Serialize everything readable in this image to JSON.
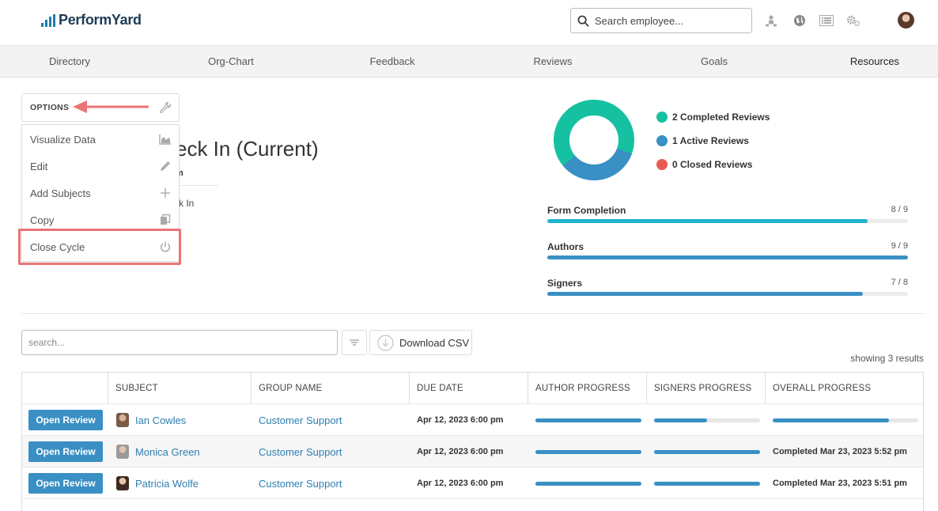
{
  "header": {
    "logo_text": "PerformYard",
    "search_placeholder": "Search employee...",
    "icons": [
      "org-person-icon",
      "globe-icon",
      "list-icon",
      "gears-icon"
    ]
  },
  "nav": {
    "items": [
      {
        "label": "Directory"
      },
      {
        "label": "Org-Chart"
      },
      {
        "label": "Feedback"
      },
      {
        "label": "Reviews"
      },
      {
        "label": "Goals"
      },
      {
        "label": "Resources",
        "active": true
      }
    ]
  },
  "options": {
    "label": "OPTIONS",
    "items": [
      {
        "label": "Visualize Data",
        "icon": "chart-icon"
      },
      {
        "label": "Edit",
        "icon": "pencil-icon"
      },
      {
        "label": "Add Subjects",
        "icon": "plus-icon"
      },
      {
        "label": "Copy",
        "icon": "copy-icon"
      },
      {
        "label": "Close Cycle",
        "icon": "power-icon"
      }
    ]
  },
  "cycle": {
    "title_visible": "eck In (Current)",
    "subtitle_visible": "m",
    "line2_visible": "k In"
  },
  "summary": {
    "legend": [
      {
        "label": "2 Completed Reviews",
        "color": "#15c1a0"
      },
      {
        "label": "1 Active Reviews",
        "color": "#3a8fc4"
      },
      {
        "label": "0 Closed Reviews",
        "color": "#e85a4f"
      }
    ],
    "donut": {
      "completed": 2,
      "active": 1,
      "closed": 0
    },
    "stats": [
      {
        "label": "Form Completion",
        "value": "8 / 9",
        "fraction": 0.889,
        "color": "#1fb3cf"
      },
      {
        "label": "Authors",
        "value": "9 / 9",
        "fraction": 1.0,
        "color": "#3a8fc4"
      },
      {
        "label": "Signers",
        "value": "7 / 8",
        "fraction": 0.875,
        "color": "#3a8fc4"
      }
    ]
  },
  "toolbar": {
    "search_placeholder": "search...",
    "download_label": "Download CSV",
    "results_text": "showing 3 results"
  },
  "table": {
    "headers": [
      "SUBJECT",
      "GROUP NAME",
      "DUE DATE",
      "AUTHOR PROGRESS",
      "SIGNERS PROGRESS",
      "OVERALL PROGRESS"
    ],
    "rows": [
      {
        "button": "Open Review",
        "subject": "Ian Cowles",
        "group": "Customer Support",
        "due": "Apr 12, 2023 6:00 pm",
        "author_progress": 1.0,
        "signers_progress": 0.5,
        "overall_progress": 0.8,
        "overall_text": ""
      },
      {
        "button": "Open Review",
        "subject": "Monica Green",
        "group": "Customer Support",
        "due": "Apr 12, 2023 6:00 pm",
        "author_progress": 1.0,
        "signers_progress": 1.0,
        "overall_text": "Completed Mar 23, 2023 5:52 pm"
      },
      {
        "button": "Open Review",
        "subject": "Patricia Wolfe",
        "group": "Customer Support",
        "due": "Apr 12, 2023 6:00 pm",
        "author_progress": 1.0,
        "signers_progress": 1.0,
        "overall_text": "Completed Mar 23, 2023 5:51 pm"
      }
    ]
  }
}
